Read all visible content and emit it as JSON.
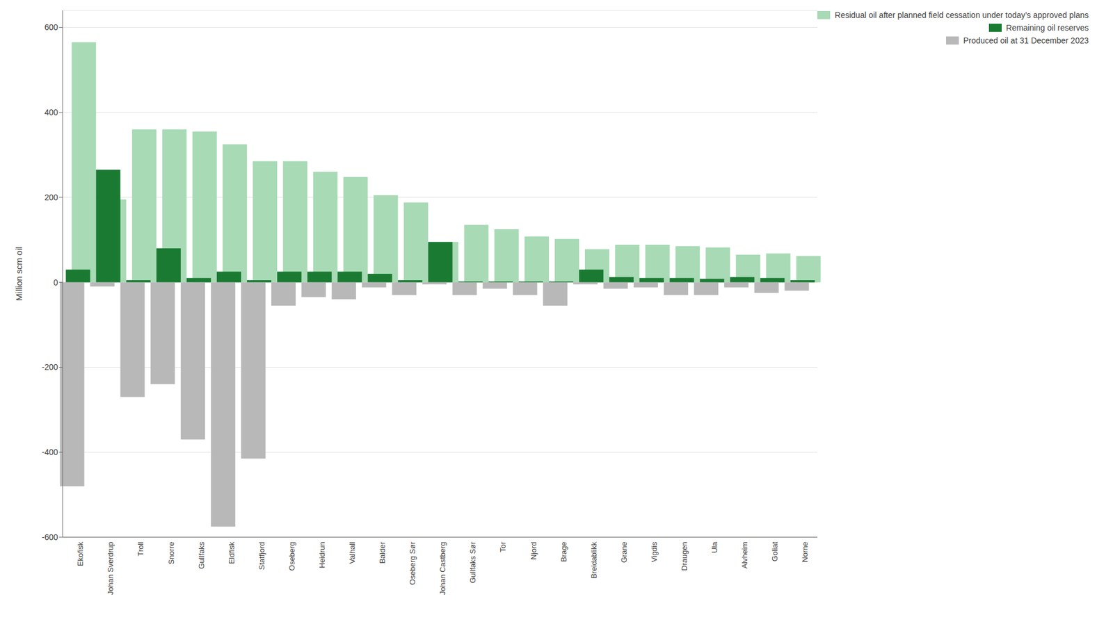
{
  "chart_data": {
    "type": "bar",
    "categories": [
      "Ekofisk",
      "Johan Sverdrup",
      "Troll",
      "Snorre",
      "Gullfaks",
      "Eldfisk",
      "Statfjord",
      "Oseberg",
      "Heidrun",
      "Valhall",
      "Balder",
      "Oseberg Sør",
      "Johan Castberg",
      "Gullfaks Sør",
      "Tor",
      "Njord",
      "Brage",
      "Breidablikk",
      "Grane",
      "Vigdis",
      "Draugen",
      "Ula",
      "Alvheim",
      "Goliat",
      "Norne"
    ],
    "series": [
      {
        "name": "Residual oil after planned field cessation under today’s approved plans",
        "color": "#a8dab5",
        "values": [
          565,
          195,
          360,
          360,
          355,
          325,
          285,
          285,
          260,
          248,
          205,
          188,
          95,
          135,
          125,
          108,
          102,
          78,
          88,
          88,
          85,
          82,
          65,
          68,
          62
        ]
      },
      {
        "name": "Remaining oil reserves",
        "color": "#1a7a32",
        "values": [
          30,
          265,
          5,
          80,
          10,
          25,
          5,
          25,
          25,
          25,
          20,
          5,
          95,
          2,
          2,
          2,
          2,
          30,
          12,
          10,
          10,
          8,
          12,
          10,
          5
        ]
      },
      {
        "name": "Produced oil at 31 December 2023",
        "color": "#b8b8b8",
        "values": [
          -480,
          -10,
          -270,
          -240,
          -370,
          -575,
          -415,
          -55,
          -35,
          -40,
          -12,
          -30,
          -5,
          -30,
          -15,
          -30,
          -55,
          -5,
          -15,
          -12,
          -30,
          -30,
          -12,
          -25,
          -20
        ]
      }
    ],
    "ylabel": "Million scm oil",
    "ylim": [
      -600,
      640
    ],
    "yticks": [
      -600,
      -400,
      -200,
      0,
      200,
      400,
      600
    ],
    "grid": true,
    "stacked": false,
    "legend": "upper right"
  }
}
